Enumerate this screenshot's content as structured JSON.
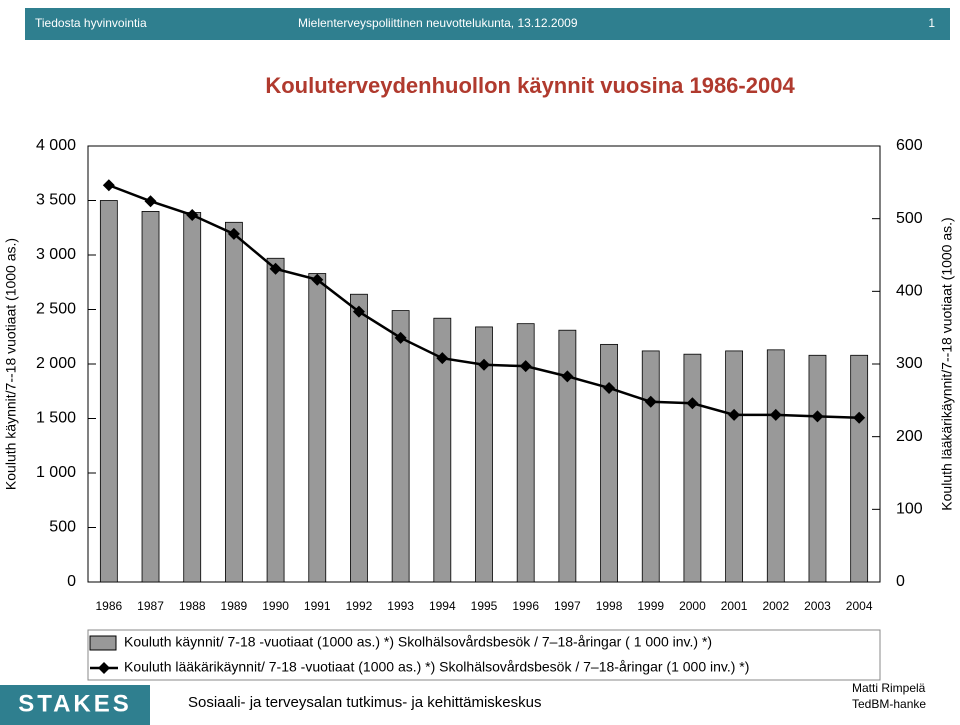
{
  "header": {
    "left": "Tiedosta hyvinvointia",
    "center": "Mielenterveyspoliittinen neuvottelukunta, 13.12.2009",
    "page": "1"
  },
  "footer": {
    "logo": "STAKES",
    "org": "Sosiaali- ja terveysalan tutkimus- ja kehittämiskeskus",
    "author": "Matti Rimpelä",
    "project": "TedBM-hanke"
  },
  "chart_data": {
    "type": "bar_line",
    "title": "Kouluterveydenhuollon käynnit vuosina 1986-2004",
    "y_label": "Kouluth käynnit/7--18 vuotiaat (1000 as.)",
    "y2_label": "Kouluth lääkärikäynnit/7--18 vuotiaat (1000 as.)",
    "categories": [
      "1986",
      "1987",
      "1988",
      "1989",
      "1990",
      "1991",
      "1992",
      "1993",
      "1994",
      "1995",
      "1996",
      "1997",
      "1998",
      "1999",
      "2000",
      "2001",
      "2002",
      "2003",
      "2004"
    ],
    "series": [
      {
        "name": "Kouluth käynnit/ 7-18 -vuotiaat (1000 as.) *) Skolhälsovårdsbesök / 7–18-åringar ( 1 000 inv.) *)",
        "type": "bar",
        "color": "#999999",
        "values": [
          3500,
          3400,
          3390,
          3300,
          2970,
          2830,
          2640,
          2490,
          2420,
          2340,
          2370,
          2310,
          2180,
          2120,
          2090,
          2120,
          2130,
          2080,
          2080
        ]
      },
      {
        "name": "Kouluth lääkärikäynnit/ 7-18 -vuotiaat (1000 as.) *) Skolhälsovårdsbesök / 7–18-åringar (1 000 inv.) *)",
        "type": "line",
        "axis": "y2",
        "color": "#000000",
        "values": [
          546,
          524,
          505,
          479,
          431,
          416,
          372,
          336,
          308,
          299,
          297,
          283,
          267,
          248,
          246,
          230,
          230,
          228,
          226
        ]
      }
    ],
    "ylim": [
      0,
      4000
    ],
    "yticks": [
      0,
      {
        "value": 500,
        "label": "500"
      },
      {
        "value": 1000,
        "label": "1 000"
      },
      {
        "value": 1500,
        "label": "1 500"
      },
      {
        "value": 2000,
        "label": "2 000"
      },
      {
        "value": 2500,
        "label": "2 500"
      },
      {
        "value": 3000,
        "label": "3 000"
      },
      {
        "value": 3500,
        "label": "3 500"
      },
      {
        "value": 4000,
        "label": "4 000"
      }
    ],
    "y2lim": [
      0,
      600
    ],
    "y2ticks": [
      0,
      100,
      200,
      300,
      400,
      500,
      600
    ],
    "grid": false
  }
}
